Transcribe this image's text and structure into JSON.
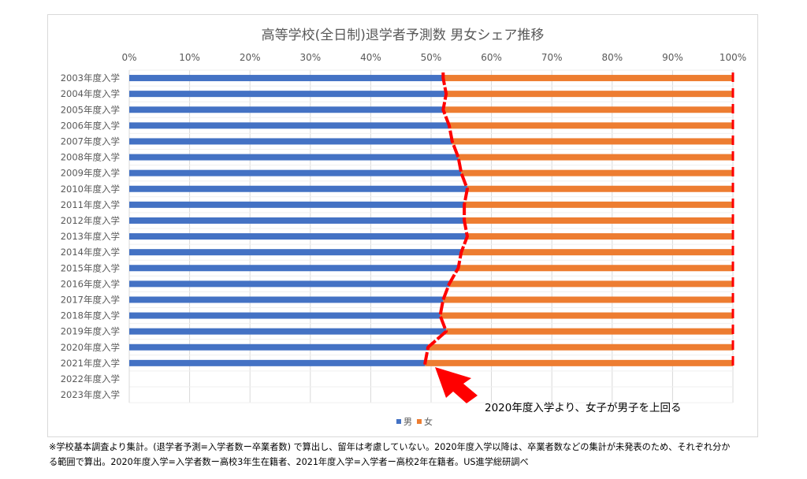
{
  "chart_data": {
    "type": "bar",
    "stacked": true,
    "orientation": "horizontal",
    "percent": true,
    "title": "高等学校(全日制)退学者予測数 男女シェア推移",
    "categories": [
      "2003年度入学",
      "2004年度入学",
      "2005年度入学",
      "2006年度入学",
      "2007年度入学",
      "2008年度入学",
      "2009年度入学",
      "2010年度入学",
      "2011年度入学",
      "2012年度入学",
      "2013年度入学",
      "2014年度入学",
      "2015年度入学",
      "2016年度入学",
      "2017年度入学",
      "2018年度入学",
      "2019年度入学",
      "2020年度入学",
      "2021年度入学",
      "2022年度入学",
      "2023年度入学"
    ],
    "series": [
      {
        "name": "男",
        "color": "#4472c4",
        "values": [
          52.0,
          52.5,
          52.0,
          53.0,
          53.5,
          54.5,
          55.0,
          56.0,
          55.5,
          55.5,
          56.0,
          55.0,
          54.5,
          53.0,
          52.0,
          51.5,
          52.5,
          49.5,
          49.0,
          null,
          null
        ]
      },
      {
        "name": "女",
        "color": "#ed7d31",
        "values": [
          48.0,
          47.5,
          48.0,
          47.0,
          46.5,
          45.5,
          45.0,
          44.0,
          44.5,
          44.5,
          44.0,
          45.0,
          45.5,
          47.0,
          48.0,
          48.5,
          47.5,
          50.5,
          51.0,
          null,
          null
        ]
      }
    ],
    "xaxis": {
      "min": 0,
      "max": 100,
      "ticks": [
        "0%",
        "10%",
        "20%",
        "30%",
        "40%",
        "50%",
        "60%",
        "70%",
        "80%",
        "90%",
        "100%"
      ]
    },
    "grid": true,
    "legend": "bottom",
    "annotation": {
      "text": "2020年度入学より、女子が男子を上回る",
      "arrow_color": "#ff0000"
    },
    "boundary_line_color": "#ff0000"
  },
  "footnote": [
    "※学校基本調査より集計。(退学者予測=入学者数ー卒業者数) で算出し、留年は考慮していない。2020年度入学以降は、卒業者数などの集計が未発表のため、それぞれ分か",
    "る範囲で算出。2020年度入学=入学者数ー高校3年生在籍者、2021年度入学=入学者ー高校2年在籍者。US進学総研調べ"
  ]
}
